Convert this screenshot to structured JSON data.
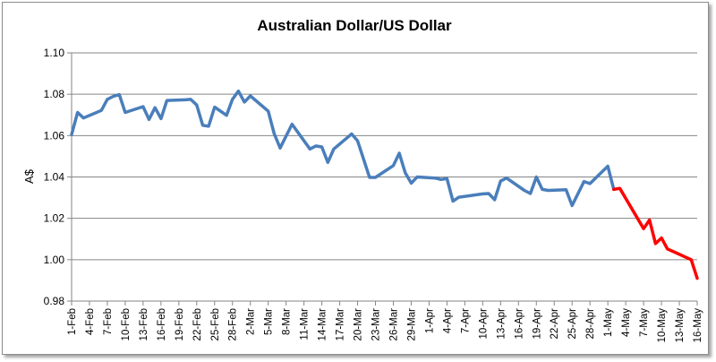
{
  "chart_data": {
    "type": "line",
    "title": "Australian Dollar/US Dollar",
    "xlabel": "",
    "ylabel": "A$",
    "ylim": [
      0.98,
      1.1
    ],
    "yticks": [
      "0.98",
      "1.00",
      "1.02",
      "1.04",
      "1.06",
      "1.08",
      "1.10"
    ],
    "xticks": [
      "1-Feb",
      "4-Feb",
      "7-Feb",
      "10-Feb",
      "13-Feb",
      "16-Feb",
      "19-Feb",
      "22-Feb",
      "25-Feb",
      "28-Feb",
      "2-Mar",
      "5-Mar",
      "8-Mar",
      "11-Mar",
      "14-Mar",
      "17-Mar",
      "20-Mar",
      "23-Mar",
      "26-Mar",
      "29-Mar",
      "1-Apr",
      "4-Apr",
      "7-Apr",
      "10-Apr",
      "13-Apr",
      "16-Apr",
      "19-Apr",
      "22-Apr",
      "25-Apr",
      "28-Apr",
      "1-May",
      "4-May",
      "7-May",
      "10-May",
      "13-May",
      "16-May"
    ],
    "grid": "horizontal",
    "legend": "none",
    "colors": {
      "series_blue": "#4a7ebb",
      "series_red": "#ff0000",
      "grid": "#868686"
    },
    "series": [
      {
        "color": "#4a7ebb",
        "points": [
          [
            "1-Feb",
            1.0605
          ],
          [
            "2-Feb",
            1.0712
          ],
          [
            "3-Feb",
            1.0685
          ],
          [
            "6-Feb",
            1.0722
          ],
          [
            "7-Feb",
            1.0775
          ],
          [
            "8-Feb",
            1.079
          ],
          [
            "9-Feb",
            1.0798
          ],
          [
            "10-Feb",
            1.0712
          ],
          [
            "13-Feb",
            1.074
          ],
          [
            "14-Feb",
            1.0678
          ],
          [
            "15-Feb",
            1.0735
          ],
          [
            "16-Feb",
            1.0682
          ],
          [
            "17-Feb",
            1.077
          ],
          [
            "20-Feb",
            1.0773
          ],
          [
            "21-Feb",
            1.0775
          ],
          [
            "22-Feb",
            1.0748
          ],
          [
            "23-Feb",
            1.065
          ],
          [
            "24-Feb",
            1.0645
          ],
          [
            "25-Feb",
            1.0738
          ],
          [
            "27-Feb",
            1.0698
          ],
          [
            "28-Feb",
            1.0775
          ],
          [
            "29-Feb",
            1.0815
          ],
          [
            "1-Mar",
            1.0762
          ],
          [
            "2-Mar",
            1.0792
          ],
          [
            "5-Mar",
            1.0718
          ],
          [
            "6-Mar",
            1.061
          ],
          [
            "7-Mar",
            1.054
          ],
          [
            "9-Mar",
            1.0655
          ],
          [
            "12-Mar",
            1.0535
          ],
          [
            "13-Mar",
            1.055
          ],
          [
            "14-Mar",
            1.0545
          ],
          [
            "15-Mar",
            1.047
          ],
          [
            "16-Mar",
            1.0535
          ],
          [
            "19-Mar",
            1.0608
          ],
          [
            "20-Mar",
            1.0575
          ],
          [
            "22-Mar",
            1.0398
          ],
          [
            "23-Mar",
            1.0398
          ],
          [
            "26-Mar",
            1.0455
          ],
          [
            "27-Mar",
            1.0515
          ],
          [
            "28-Mar",
            1.042
          ],
          [
            "29-Mar",
            1.037
          ],
          [
            "30-Mar",
            1.04
          ],
          [
            "2-Apr",
            1.0395
          ],
          [
            "3-Apr",
            1.0388
          ],
          [
            "4-Apr",
            1.0392
          ],
          [
            "5-Apr",
            1.0283
          ],
          [
            "6-Apr",
            1.0302
          ],
          [
            "10-Apr",
            1.0318
          ],
          [
            "11-Apr",
            1.032
          ],
          [
            "12-Apr",
            1.029
          ],
          [
            "13-Apr",
            1.038
          ],
          [
            "14-Apr",
            1.0395
          ],
          [
            "17-Apr",
            1.0335
          ],
          [
            "18-Apr",
            1.032
          ],
          [
            "19-Apr",
            1.04
          ],
          [
            "20-Apr",
            1.034
          ],
          [
            "21-Apr",
            1.0335
          ],
          [
            "24-Apr",
            1.0338
          ],
          [
            "25-Apr",
            1.0262
          ],
          [
            "27-Apr",
            1.0378
          ],
          [
            "28-Apr",
            1.0368
          ],
          [
            "1-May",
            1.0452
          ],
          [
            "2-May",
            1.034
          ]
        ]
      },
      {
        "color": "#ff0000",
        "points": [
          [
            "2-May",
            1.034
          ],
          [
            "3-May",
            1.0345
          ],
          [
            "7-May",
            1.015
          ],
          [
            "8-May",
            1.0192
          ],
          [
            "9-May",
            1.0078
          ],
          [
            "10-May",
            1.0105
          ],
          [
            "11-May",
            1.0052
          ],
          [
            "15-May",
            1.0
          ],
          [
            "16-May",
            0.991
          ]
        ]
      }
    ]
  }
}
